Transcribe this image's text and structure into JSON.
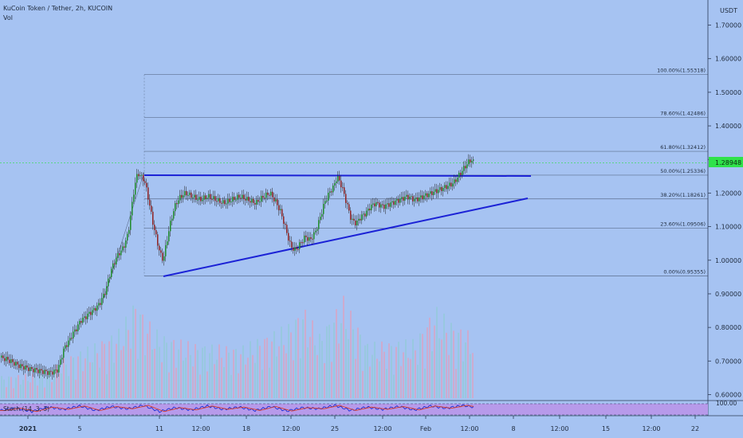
{
  "header": {
    "title": "KuCoin Token / Tether, 2h, KUCOIN",
    "vol_label": "Vol"
  },
  "price_axis": {
    "unit_label": "USDT",
    "ticks": [
      "1.70000",
      "1.60000",
      "1.50000",
      "1.40000",
      "1.30000",
      "1.20000",
      "1.10000",
      "1.00000",
      "0.90000",
      "0.80000",
      "0.70000",
      "0.60000"
    ]
  },
  "stoch": {
    "label": "Stoch (14, 3, 3)",
    "axis_label": "100.00"
  },
  "chart_data": {
    "type": "candlestick",
    "title": "KuCoin Token / Tether, 2h, KUCOIN",
    "ylabel": "USDT",
    "ylim": [
      0.58,
      1.75
    ],
    "x_ticks": [
      "2021",
      "5",
      "11",
      "12:00",
      "18",
      "12:00",
      "25",
      "12:00",
      "Feb",
      "12:00",
      "8",
      "12:00",
      "15",
      "12:00",
      "22"
    ],
    "last_price": "1.28948",
    "last_price_value": 1.28948,
    "fibonacci": [
      {
        "label": "100.00%(1.55318)",
        "value": 1.55318
      },
      {
        "label": "78.60%(1.42486)",
        "value": 1.42486
      },
      {
        "label": "61.80%(1.32412)",
        "value": 1.32412
      },
      {
        "label": "50.00%(1.25336)",
        "value": 1.25336
      },
      {
        "label": "38.20%(1.18261)",
        "value": 1.18261
      },
      {
        "label": "23.60%(1.09506)",
        "value": 1.09506
      },
      {
        "label": "0.00%(0.95355)",
        "value": 0.95355
      }
    ],
    "trendlines": [
      {
        "name": "resistance",
        "from": {
          "x": "Jan 10",
          "y": 1.256
        },
        "to": {
          "x": "Feb 8",
          "y": 1.253
        }
      },
      {
        "name": "support",
        "from": {
          "x": "Jan 11",
          "y": 0.95
        },
        "to": {
          "x": "Feb 8",
          "y": 1.18
        }
      }
    ],
    "price_path": [
      [
        0,
        0.71
      ],
      [
        8,
        0.705
      ],
      [
        16,
        0.695
      ],
      [
        24,
        0.685
      ],
      [
        32,
        0.68
      ],
      [
        38,
        0.675
      ],
      [
        44,
        0.673
      ],
      [
        50,
        0.67
      ],
      [
        56,
        0.668
      ],
      [
        62,
        0.665
      ],
      [
        68,
        0.67
      ],
      [
        72,
        0.675
      ],
      [
        76,
        0.71
      ],
      [
        80,
        0.74
      ],
      [
        86,
        0.76
      ],
      [
        90,
        0.78
      ],
      [
        96,
        0.8
      ],
      [
        100,
        0.82
      ],
      [
        106,
        0.83
      ],
      [
        110,
        0.84
      ],
      [
        116,
        0.85
      ],
      [
        120,
        0.86
      ],
      [
        124,
        0.87
      ],
      [
        128,
        0.89
      ],
      [
        132,
        0.91
      ],
      [
        136,
        0.95
      ],
      [
        140,
        0.98
      ],
      [
        144,
        1.0
      ],
      [
        148,
        1.02
      ],
      [
        152,
        1.03
      ],
      [
        156,
        1.05
      ],
      [
        160,
        1.08
      ],
      [
        164,
        1.15
      ],
      [
        168,
        1.22
      ],
      [
        172,
        1.26
      ],
      [
        176,
        1.25
      ],
      [
        180,
        1.24
      ],
      [
        184,
        1.2
      ],
      [
        188,
        1.15
      ],
      [
        192,
        1.1
      ],
      [
        196,
        1.06
      ],
      [
        200,
        1.02
      ],
      [
        204,
        1.0
      ],
      [
        208,
        1.05
      ],
      [
        212,
        1.1
      ],
      [
        216,
        1.14
      ],
      [
        220,
        1.17
      ],
      [
        226,
        1.19
      ],
      [
        232,
        1.2
      ],
      [
        240,
        1.19
      ],
      [
        250,
        1.18
      ],
      [
        260,
        1.19
      ],
      [
        270,
        1.18
      ],
      [
        280,
        1.17
      ],
      [
        290,
        1.18
      ],
      [
        300,
        1.19
      ],
      [
        310,
        1.18
      ],
      [
        320,
        1.17
      ],
      [
        330,
        1.19
      ],
      [
        338,
        1.2
      ],
      [
        346,
        1.17
      ],
      [
        352,
        1.14
      ],
      [
        358,
        1.09
      ],
      [
        364,
        1.04
      ],
      [
        370,
        1.03
      ],
      [
        376,
        1.05
      ],
      [
        382,
        1.07
      ],
      [
        388,
        1.06
      ],
      [
        394,
        1.08
      ],
      [
        400,
        1.12
      ],
      [
        406,
        1.17
      ],
      [
        412,
        1.2
      ],
      [
        418,
        1.22
      ],
      [
        422,
        1.25
      ],
      [
        428,
        1.22
      ],
      [
        434,
        1.17
      ],
      [
        440,
        1.12
      ],
      [
        446,
        1.11
      ],
      [
        452,
        1.13
      ],
      [
        458,
        1.14
      ],
      [
        464,
        1.16
      ],
      [
        470,
        1.17
      ],
      [
        480,
        1.16
      ],
      [
        490,
        1.17
      ],
      [
        500,
        1.18
      ],
      [
        510,
        1.19
      ],
      [
        520,
        1.18
      ],
      [
        530,
        1.19
      ],
      [
        540,
        1.2
      ],
      [
        550,
        1.21
      ],
      [
        560,
        1.22
      ],
      [
        568,
        1.23
      ],
      [
        574,
        1.25
      ],
      [
        580,
        1.27
      ],
      [
        586,
        1.29
      ],
      [
        590,
        1.3
      ],
      [
        594,
        1.29
      ]
    ],
    "volume_profile": [
      [
        0,
        0.12
      ],
      [
        60,
        0.14
      ],
      [
        80,
        0.22
      ],
      [
        120,
        0.3
      ],
      [
        150,
        0.38
      ],
      [
        170,
        0.55
      ],
      [
        180,
        0.45
      ],
      [
        200,
        0.35
      ],
      [
        240,
        0.3
      ],
      [
        300,
        0.28
      ],
      [
        360,
        0.4
      ],
      [
        380,
        0.5
      ],
      [
        400,
        0.35
      ],
      [
        430,
        0.55
      ],
      [
        460,
        0.3
      ],
      [
        520,
        0.32
      ],
      [
        545,
        0.5
      ],
      [
        570,
        0.4
      ],
      [
        594,
        0.35
      ]
    ],
    "stoch_k": [
      [
        0,
        40
      ],
      [
        20,
        60
      ],
      [
        40,
        30
      ],
      [
        60,
        70
      ],
      [
        80,
        50
      ],
      [
        100,
        80
      ],
      [
        120,
        40
      ],
      [
        140,
        75
      ],
      [
        160,
        55
      ],
      [
        180,
        85
      ],
      [
        200,
        30
      ],
      [
        220,
        65
      ],
      [
        240,
        45
      ],
      [
        260,
        80
      ],
      [
        280,
        50
      ],
      [
        300,
        70
      ],
      [
        320,
        40
      ],
      [
        340,
        75
      ],
      [
        360,
        35
      ],
      [
        380,
        65
      ],
      [
        400,
        55
      ],
      [
        420,
        85
      ],
      [
        440,
        40
      ],
      [
        460,
        70
      ],
      [
        480,
        50
      ],
      [
        500,
        75
      ],
      [
        520,
        45
      ],
      [
        540,
        80
      ],
      [
        560,
        60
      ],
      [
        580,
        85
      ],
      [
        594,
        70
      ]
    ]
  }
}
